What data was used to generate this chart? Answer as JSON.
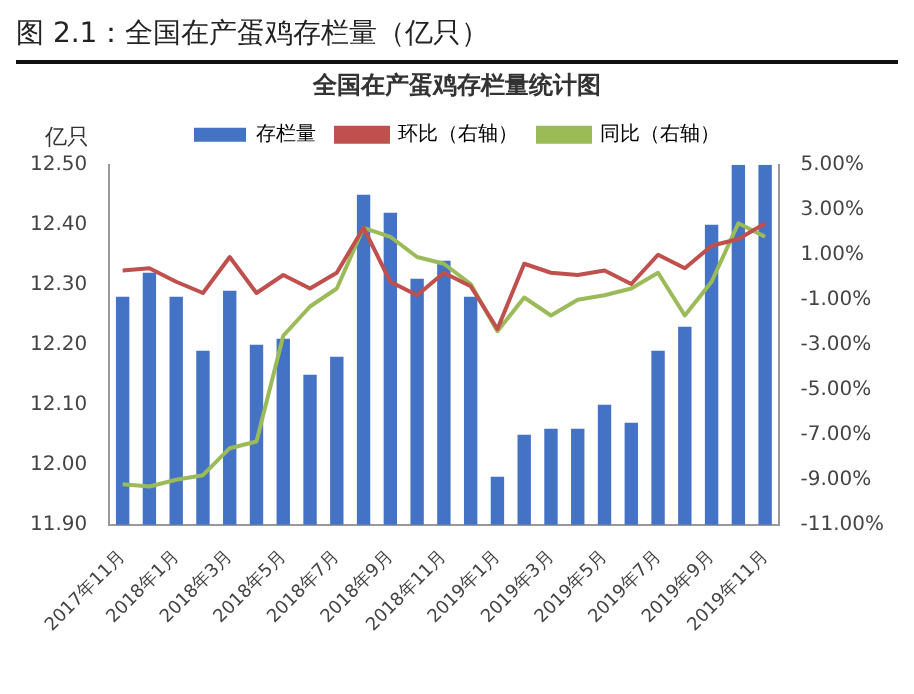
{
  "chart_data": {
    "type": "bar",
    "title": "图 2.1：全国在产蛋鸡存栏量（亿只）",
    "subtitle": "全国在产蛋鸡存栏量统计图",
    "ylabel": "亿只",
    "categories": [
      "2017年11月",
      null,
      "2018年1月",
      null,
      "2018年3月",
      null,
      "2018年5月",
      null,
      "2018年7月",
      null,
      "2018年9月",
      null,
      "2018年11月",
      null,
      "2019年1月",
      null,
      "2019年3月",
      null,
      "2019年5月",
      null,
      "2019年7月",
      null,
      "2019年9月",
      null,
      "2019年11月"
    ],
    "series": [
      {
        "name": "存栏量",
        "color": "#4472c4",
        "values": [
          12.28,
          12.32,
          12.28,
          12.19,
          12.29,
          12.2,
          12.21,
          12.15,
          12.18,
          12.45,
          12.42,
          12.31,
          12.34,
          12.28,
          11.98,
          12.05,
          12.06,
          12.06,
          12.1,
          12.07,
          12.19,
          12.23,
          12.4,
          12.5,
          12.5
        ]
      },
      {
        "name": "环比（右轴）",
        "type": "line",
        "axis": "y2",
        "color": "#c0504d",
        "values": [
          0.3,
          0.4,
          -0.2,
          -0.7,
          0.9,
          -0.7,
          0.1,
          -0.5,
          0.2,
          2.2,
          -0.2,
          -0.8,
          0.2,
          -0.4,
          -2.3,
          0.6,
          0.2,
          0.1,
          0.3,
          -0.3,
          1.0,
          0.4,
          1.4,
          1.7,
          2.4
        ]
      },
      {
        "name": "同比（右轴）",
        "type": "line",
        "axis": "y2",
        "color": "#9bbb59",
        "values": [
          -9.2,
          -9.3,
          -9.0,
          -8.8,
          -7.6,
          -7.3,
          -2.6,
          -1.3,
          -0.5,
          2.2,
          1.8,
          0.9,
          0.6,
          -0.3,
          -2.4,
          -0.9,
          -1.7,
          -1.0,
          -0.8,
          -0.5,
          0.2,
          -1.7,
          -0.2,
          2.4,
          1.8
        ]
      }
    ],
    "ylim": [
      11.9,
      12.5
    ],
    "yticks": [
      {
        "value": 11.9,
        "label": "11.90"
      },
      {
        "value": 12.0,
        "label": "12.00"
      },
      {
        "value": 12.1,
        "label": "12.10"
      },
      {
        "value": 12.2,
        "label": "12.20"
      },
      {
        "value": 12.3,
        "label": "12.30"
      },
      {
        "value": 12.4,
        "label": "12.40"
      },
      {
        "value": 12.5,
        "label": "12.50"
      }
    ],
    "y2lim": [
      -11,
      5
    ],
    "y2ticks": [
      {
        "value": -11,
        "label": "-11.00%"
      },
      {
        "value": -9,
        "label": "-9.00%"
      },
      {
        "value": -7,
        "label": "-7.00%"
      },
      {
        "value": -5,
        "label": "-5.00%"
      },
      {
        "value": -3,
        "label": "-3.00%"
      },
      {
        "value": -1,
        "label": "-1.00%"
      },
      {
        "value": 1,
        "label": "1.00%"
      },
      {
        "value": 3,
        "label": "3.00%"
      },
      {
        "value": 5,
        "label": "5.00%"
      }
    ],
    "grid": false,
    "legend": "top",
    "marker": "none",
    "line_style": "solid"
  }
}
